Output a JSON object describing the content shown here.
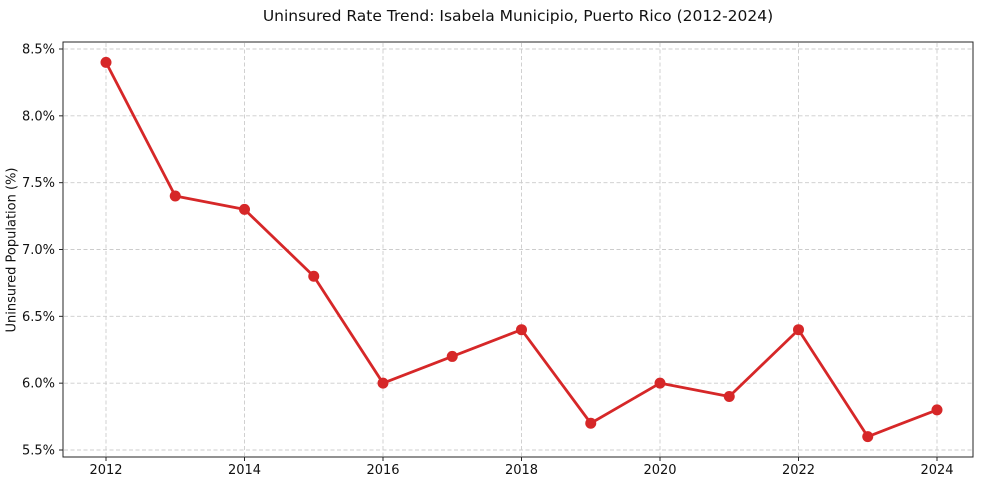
{
  "chart_data": {
    "type": "line",
    "title": "Uninsured Rate Trend: Isabela Municipio, Puerto Rico (2012-2024)",
    "xlabel": "",
    "ylabel": "Uninsured Population (%)",
    "x": [
      2012,
      2013,
      2014,
      2015,
      2016,
      2017,
      2018,
      2019,
      2020,
      2021,
      2022,
      2023,
      2024
    ],
    "values": [
      8.4,
      7.4,
      7.3,
      6.8,
      6.0,
      6.2,
      6.4,
      5.7,
      6.0,
      5.9,
      6.4,
      5.6,
      5.8
    ],
    "x_tick_values": [
      2012,
      2014,
      2016,
      2018,
      2020,
      2022,
      2024
    ],
    "x_tick_labels": [
      "2012",
      "2014",
      "2016",
      "2018",
      "2020",
      "2022",
      "2024"
    ],
    "y_tick_values": [
      5.5,
      6.0,
      6.5,
      7.0,
      7.5,
      8.0,
      8.5
    ],
    "y_tick_labels": [
      "5.5%",
      "6.0%",
      "6.5%",
      "7.0%",
      "7.5%",
      "8.0%",
      "8.5%"
    ],
    "xlim": [
      2012,
      2024
    ],
    "ylim": [
      5.5,
      8.5
    ],
    "grid": true,
    "grid_style": "dashed",
    "legend": "none",
    "line_color": "#d62728",
    "marker_color": "#d62728",
    "marker": "circle",
    "grid_color": "#cccccc",
    "spine_color": "#262626"
  }
}
